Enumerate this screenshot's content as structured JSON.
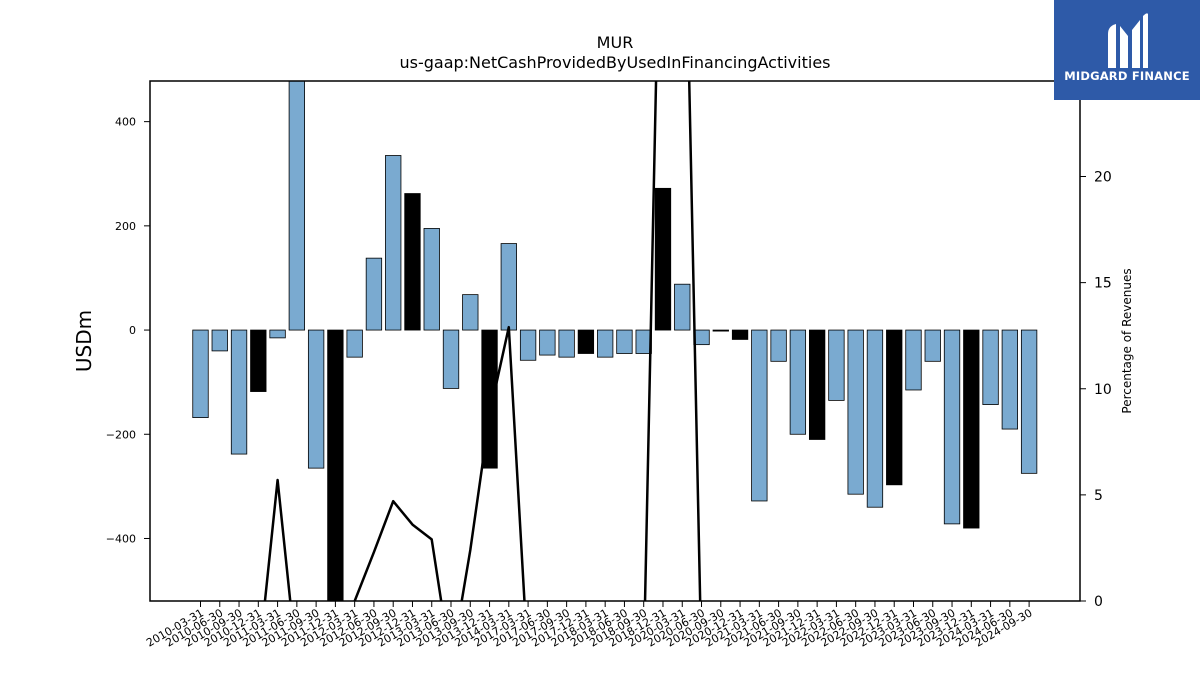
{
  "chart_data": {
    "type": "bar",
    "title": "MUR",
    "subtitle": "us-gaap:NetCashProvidedByUsedInFinancingActivities",
    "ylabel": "USDm",
    "ylabel_right": "Percentage of Revenues",
    "ylim": [
      -520,
      478
    ],
    "ylim_right": [
      0,
      24.5
    ],
    "yticks": [
      -400,
      -200,
      0,
      200,
      400
    ],
    "yticks_right": [
      0,
      5,
      10,
      15,
      20
    ],
    "categories": [
      "2010-03-31",
      "2010-06-30",
      "2010-09-30",
      "2010-12-31",
      "2011-03-31",
      "2011-06-30",
      "2011-09-30",
      "2011-12-31",
      "2012-03-31",
      "2012-06-30",
      "2012-09-30",
      "2012-12-31",
      "2013-03-31",
      "2013-06-30",
      "2013-09-30",
      "2013-12-31",
      "2014-03-31",
      "2017-03-31",
      "2017-06-30",
      "2017-09-30",
      "2017-12-31",
      "2018-03-31",
      "2018-06-30",
      "2018-09-30",
      "2018-12-31",
      "2020-03-31",
      "2020-06-30",
      "2020-09-30",
      "2020-12-31",
      "2021-03-31",
      "2021-06-30",
      "2021-09-30",
      "2021-12-31",
      "2022-03-31",
      "2022-06-30",
      "2022-09-30",
      "2022-12-31",
      "2023-03-31",
      "2023-06-30",
      "2023-09-30",
      "2023-12-31",
      "2024-03-31",
      "2024-06-30",
      "2024-09-30"
    ],
    "values": [
      -168,
      -40,
      -238,
      -118,
      -15,
      500,
      -265,
      -540,
      -52,
      138,
      335,
      262,
      195,
      -112,
      68,
      -265,
      166,
      -58,
      -48,
      -52,
      -45,
      -52,
      -45,
      -45,
      272,
      88,
      -28,
      -2,
      -18,
      -328,
      -60,
      -200,
      -210,
      -135,
      -315,
      -340,
      -297,
      -115,
      -60,
      -372,
      -380,
      -143,
      -190,
      -275
    ],
    "highlight": [
      false,
      false,
      false,
      true,
      false,
      false,
      false,
      true,
      false,
      false,
      false,
      true,
      false,
      false,
      false,
      true,
      false,
      false,
      false,
      false,
      true,
      false,
      false,
      false,
      true,
      false,
      false,
      true,
      true,
      false,
      false,
      false,
      true,
      false,
      false,
      false,
      true,
      false,
      false,
      false,
      true,
      false,
      false,
      false
    ],
    "percent_of_revenues": [
      -3,
      -3,
      -3,
      -3,
      5.7,
      -3,
      -3,
      -3,
      0,
      2.3,
      4.7,
      3.6,
      2.9,
      -3,
      2.4,
      8.8,
      12.9,
      -3,
      -3,
      -3,
      -3,
      -3,
      -3,
      -3,
      40,
      40,
      -3,
      -3,
      -3,
      -3,
      -3,
      -3,
      -3,
      -3,
      -3,
      -3,
      -3,
      -3,
      -3,
      -3,
      -3,
      -3,
      -3,
      -3
    ],
    "colors": {
      "bar": "#7aaad0",
      "highlight": "#000000",
      "line": "#000000"
    },
    "grid": false,
    "legend": "none"
  },
  "logo": {
    "text": "MIDGARD FINANCE"
  }
}
